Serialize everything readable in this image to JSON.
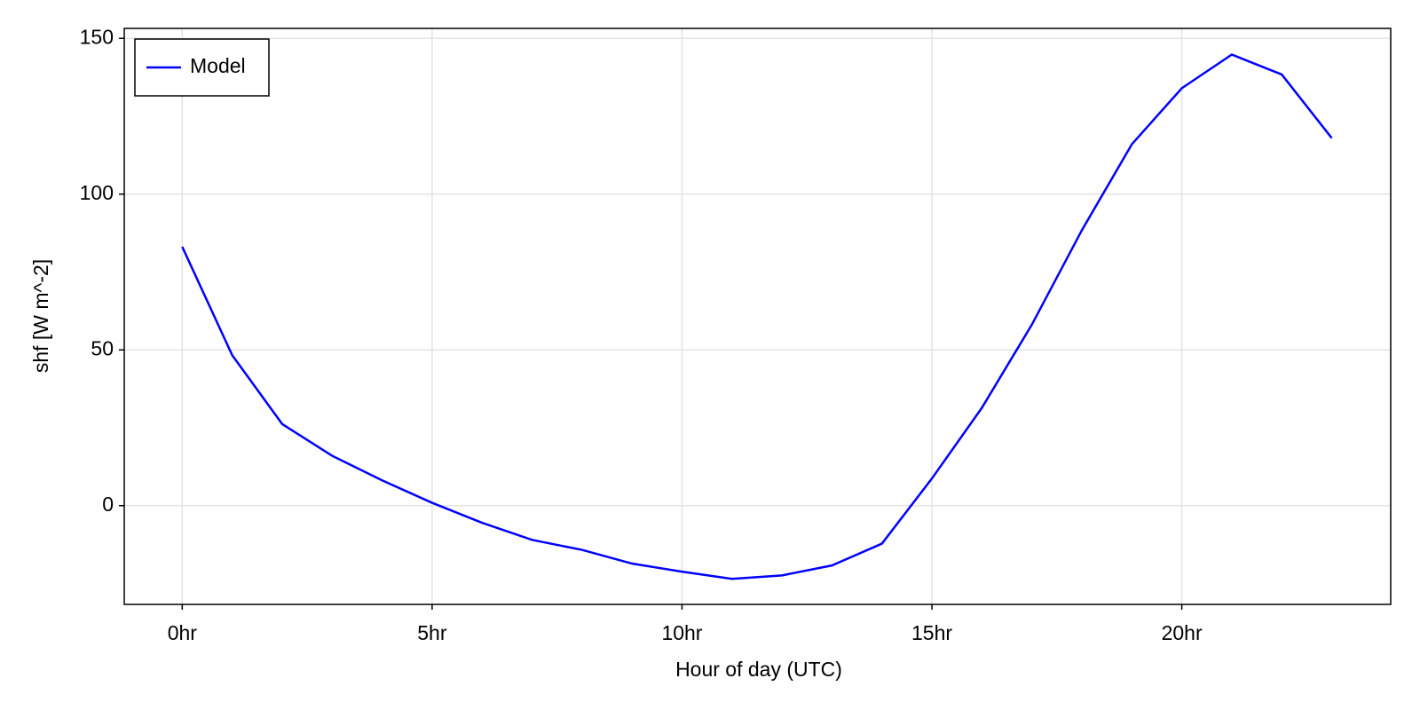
{
  "chart_data": {
    "type": "line",
    "x_label": "Hour of day (UTC)",
    "y_label": "shf [W m^-2]",
    "x": [
      0,
      1,
      2,
      3,
      4,
      5,
      6,
      7,
      8,
      9,
      10,
      11,
      12,
      13,
      14,
      15,
      16,
      17,
      18,
      19,
      20,
      21,
      22,
      23
    ],
    "series": [
      {
        "name": "Model",
        "color": "#0000ff",
        "values": [
          83.1,
          48.3,
          26.2,
          16.0,
          8.1,
          0.9,
          -5.5,
          -11.0,
          -14.2,
          -18.6,
          -21.2,
          -23.5,
          -22.4,
          -19.2,
          -12.2,
          8.7,
          31.4,
          58.1,
          88.4,
          116.0,
          134.0,
          144.8,
          138.4,
          118.0
        ]
      }
    ],
    "xlim": [
      -1.16,
      24.18
    ],
    "xticks": [
      {
        "value": 0,
        "label": "0hr"
      },
      {
        "value": 5,
        "label": "5hr"
      },
      {
        "value": 10,
        "label": "10hr"
      },
      {
        "value": 15,
        "label": "15hr"
      },
      {
        "value": 20,
        "label": "20hr"
      }
    ],
    "ylim": [
      -31.7,
      153.2
    ],
    "yticks": [
      0,
      50,
      100,
      150
    ],
    "grid": true,
    "legend": "upper-left"
  }
}
